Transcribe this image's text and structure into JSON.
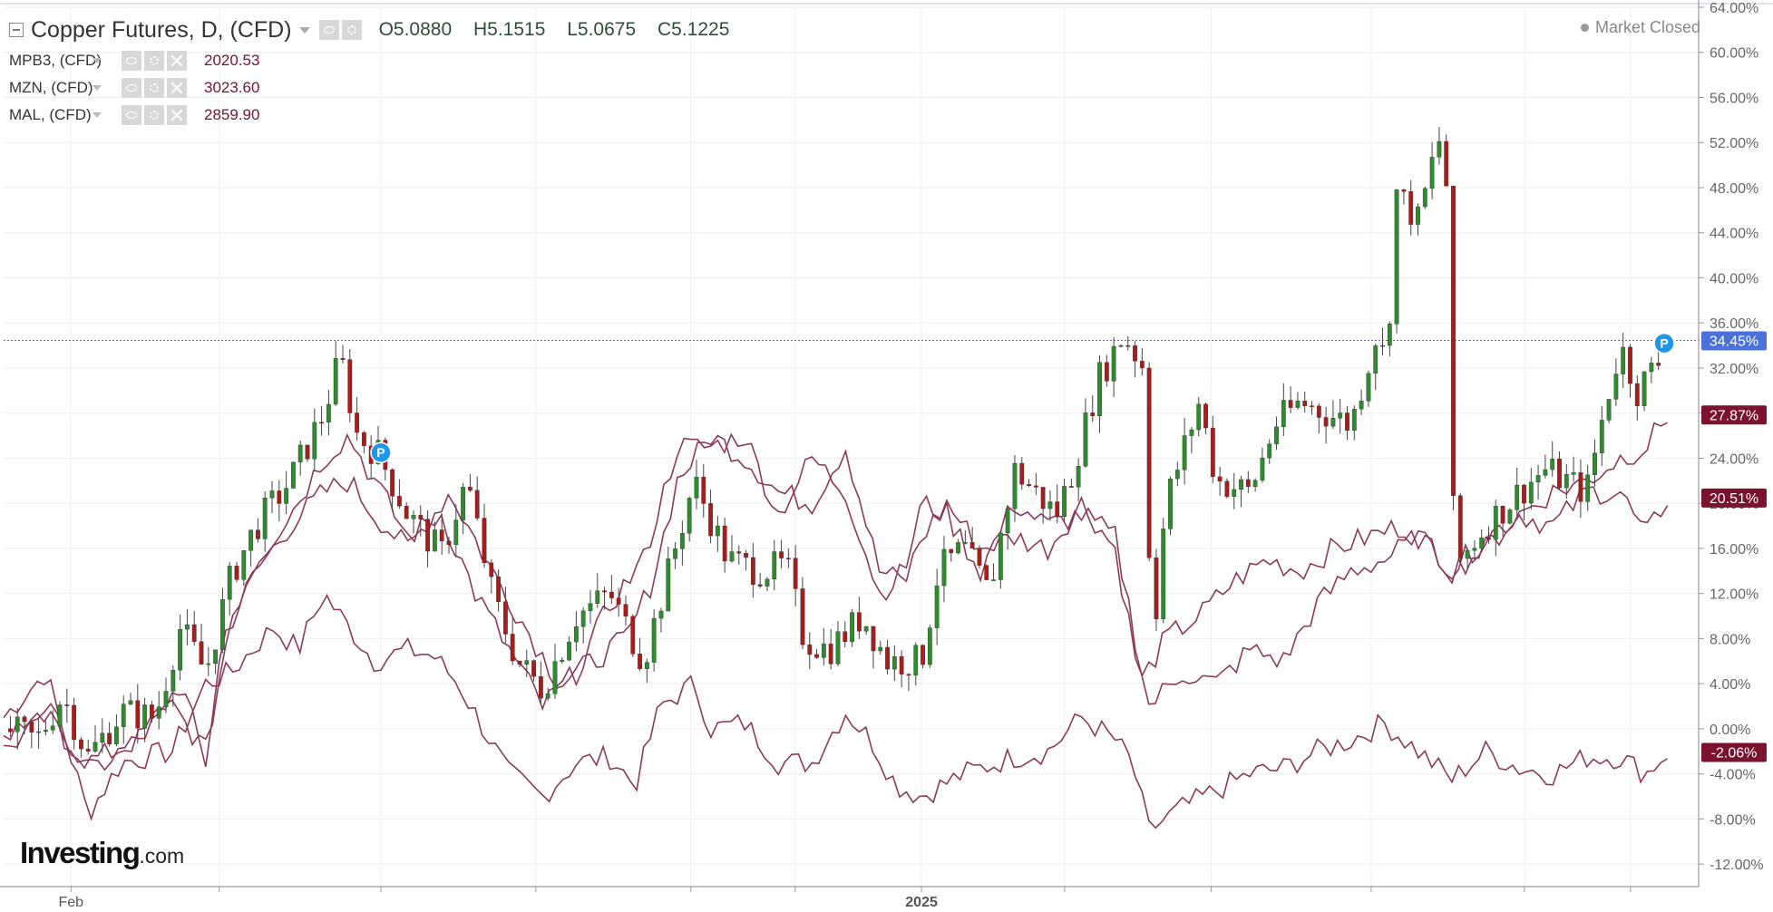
{
  "instrument": {
    "title": "Copper Futures, D, (CFD)",
    "ohlc": {
      "open": "O5.0880",
      "high": "H5.1515",
      "low": "L5.0675",
      "close": "C5.1225"
    }
  },
  "comparisons": [
    {
      "name": "MPB3, (CFD)",
      "value": "2020.53"
    },
    {
      "name": "MZN, (CFD)",
      "value": "3023.60"
    },
    {
      "name": "MAL, (CFD)",
      "value": "2859.90"
    }
  ],
  "market_status": "Market Closed",
  "logo": {
    "main": "Investing",
    "suffix": ".com"
  },
  "colors": {
    "up": "#2e8b2e",
    "down": "#a81c1c",
    "compare": "#8b3a5a",
    "price_line": "#4a72d8",
    "badge_dark": "#7a1230"
  },
  "chart_data": {
    "type": "line",
    "y_unit": "%",
    "ylim": [
      -14,
      64
    ],
    "y_ticks": [
      "64.00%",
      "60.00%",
      "56.00%",
      "52.00%",
      "48.00%",
      "44.00%",
      "40.00%",
      "36.00%",
      "32.00%",
      "28.00%",
      "24.00%",
      "20.00%",
      "16.00%",
      "12.00%",
      "8.00%",
      "4.00%",
      "0.00%",
      "-4.00%",
      "-8.00%",
      "-12.00%"
    ],
    "x_labels": [
      {
        "label": "Feb",
        "t": 0.04
      },
      {
        "label": "2025",
        "t": 0.545
      }
    ],
    "x_ticks": [
      0.04,
      0.128,
      0.224,
      0.316,
      0.408,
      0.47,
      0.545,
      0.63,
      0.717,
      0.812,
      0.903,
      0.966
    ],
    "current_price_line": 34.45,
    "badges": [
      {
        "label": "34.45%",
        "value": 34.45,
        "style": "blue"
      },
      {
        "label": "27.87%",
        "value": 27.87,
        "style": "dark"
      },
      {
        "label": "20.51%",
        "value": 20.51,
        "style": "dark"
      },
      {
        "label": "-2.06%",
        "value": -2.06,
        "style": "dark"
      }
    ],
    "markers": [
      {
        "label": "P",
        "t": 0.224,
        "value": 24.5
      },
      {
        "label": "P",
        "t": 0.986,
        "value": 34.2
      }
    ],
    "candles_path": [
      [
        0.0,
        0.0
      ],
      [
        0.02,
        -1.0
      ],
      [
        0.035,
        3.0
      ],
      [
        0.05,
        -2.5
      ],
      [
        0.07,
        1.5
      ],
      [
        0.09,
        1.0
      ],
      [
        0.105,
        9.0
      ],
      [
        0.12,
        5.0
      ],
      [
        0.135,
        13.5
      ],
      [
        0.15,
        18.0
      ],
      [
        0.17,
        22.0
      ],
      [
        0.19,
        28.0
      ],
      [
        0.2,
        33.0
      ],
      [
        0.21,
        26.0
      ],
      [
        0.222,
        24.5
      ],
      [
        0.24,
        19.0
      ],
      [
        0.26,
        15.5
      ],
      [
        0.275,
        22.0
      ],
      [
        0.29,
        12.0
      ],
      [
        0.305,
        6.0
      ],
      [
        0.32,
        3.5
      ],
      [
        0.34,
        10.0
      ],
      [
        0.36,
        12.0
      ],
      [
        0.38,
        6.0
      ],
      [
        0.395,
        14.0
      ],
      [
        0.41,
        22.0
      ],
      [
        0.43,
        15.0
      ],
      [
        0.45,
        14.0
      ],
      [
        0.465,
        14.5
      ],
      [
        0.475,
        8.0
      ],
      [
        0.49,
        7.0
      ],
      [
        0.51,
        10.0
      ],
      [
        0.525,
        6.0
      ],
      [
        0.545,
        6.0
      ],
      [
        0.555,
        14.0
      ],
      [
        0.57,
        16.0
      ],
      [
        0.585,
        12.0
      ],
      [
        0.6,
        23.0
      ],
      [
        0.625,
        19.0
      ],
      [
        0.635,
        23.0
      ],
      [
        0.65,
        31.0
      ],
      [
        0.665,
        35.0
      ],
      [
        0.677,
        32.0
      ],
      [
        0.682,
        7.0
      ],
      [
        0.69,
        20.0
      ],
      [
        0.71,
        29.0
      ],
      [
        0.72,
        22.0
      ],
      [
        0.74,
        21.0
      ],
      [
        0.755,
        27.0
      ],
      [
        0.77,
        29.0
      ],
      [
        0.8,
        27.0
      ],
      [
        0.815,
        35.0
      ],
      [
        0.822,
        32.0
      ],
      [
        0.825,
        48.0
      ],
      [
        0.84,
        45.0
      ],
      [
        0.852,
        52.5
      ],
      [
        0.858,
        47.0
      ],
      [
        0.86,
        20.0
      ],
      [
        0.865,
        15.0
      ],
      [
        0.88,
        18.0
      ],
      [
        0.9,
        21.0
      ],
      [
        0.915,
        23.0
      ],
      [
        0.94,
        21.0
      ],
      [
        0.95,
        28.0
      ],
      [
        0.96,
        34.0
      ],
      [
        0.97,
        30.0
      ],
      [
        0.985,
        33.0
      ]
    ],
    "series": [
      {
        "name": "MPB3, (CFD)",
        "end_value": -2.06,
        "path": [
          [
            0.0,
            1.0
          ],
          [
            0.025,
            5.0
          ],
          [
            0.05,
            -7.5
          ],
          [
            0.07,
            -3.0
          ],
          [
            0.1,
            -2.0
          ],
          [
            0.12,
            4.0
          ],
          [
            0.135,
            5.0
          ],
          [
            0.16,
            9.0
          ],
          [
            0.175,
            7.0
          ],
          [
            0.19,
            12.0
          ],
          [
            0.205,
            9.0
          ],
          [
            0.22,
            6.0
          ],
          [
            0.24,
            7.0
          ],
          [
            0.255,
            6.5
          ],
          [
            0.27,
            4.0
          ],
          [
            0.3,
            -4.0
          ],
          [
            0.32,
            -6.0
          ],
          [
            0.34,
            -3.0
          ],
          [
            0.36,
            -2.5
          ],
          [
            0.375,
            -5.0
          ],
          [
            0.39,
            2.0
          ],
          [
            0.41,
            4.0
          ],
          [
            0.42,
            0.0
          ],
          [
            0.44,
            0.5
          ],
          [
            0.46,
            -3.0
          ],
          [
            0.48,
            -3.0
          ],
          [
            0.5,
            1.5
          ],
          [
            0.515,
            -1.0
          ],
          [
            0.53,
            -5.0
          ],
          [
            0.545,
            -6.0
          ],
          [
            0.57,
            -4.0
          ],
          [
            0.6,
            -2.5
          ],
          [
            0.62,
            -2.0
          ],
          [
            0.64,
            1.0
          ],
          [
            0.66,
            -1.0
          ],
          [
            0.67,
            -3.0
          ],
          [
            0.68,
            -9.0
          ],
          [
            0.7,
            -7.0
          ],
          [
            0.72,
            -5.5
          ],
          [
            0.74,
            -4.0
          ],
          [
            0.76,
            -3.5
          ],
          [
            0.78,
            -2.0
          ],
          [
            0.8,
            -1.0
          ],
          [
            0.82,
            0.5
          ],
          [
            0.84,
            -2.0
          ],
          [
            0.86,
            -4.5
          ],
          [
            0.88,
            -2.0
          ],
          [
            0.9,
            -3.5
          ],
          [
            0.92,
            -4.0
          ],
          [
            0.94,
            -2.5
          ],
          [
            0.96,
            -2.5
          ],
          [
            0.975,
            -4.0
          ],
          [
            0.988,
            -2.06
          ]
        ]
      },
      {
        "name": "MZN, (CFD)",
        "end_value": 20.51,
        "path": [
          [
            0.0,
            -2.0
          ],
          [
            0.025,
            1.0
          ],
          [
            0.05,
            -3.0
          ],
          [
            0.08,
            -1.0
          ],
          [
            0.105,
            4.0
          ],
          [
            0.12,
            -3.0
          ],
          [
            0.13,
            8.0
          ],
          [
            0.15,
            14.0
          ],
          [
            0.17,
            18.0
          ],
          [
            0.19,
            21.0
          ],
          [
            0.205,
            22.0
          ],
          [
            0.22,
            19.0
          ],
          [
            0.24,
            16.0
          ],
          [
            0.265,
            21.0
          ],
          [
            0.29,
            14.0
          ],
          [
            0.31,
            9.0
          ],
          [
            0.33,
            4.0
          ],
          [
            0.35,
            6.0
          ],
          [
            0.37,
            8.0
          ],
          [
            0.385,
            13.0
          ],
          [
            0.4,
            22.0
          ],
          [
            0.42,
            26.0
          ],
          [
            0.44,
            24.0
          ],
          [
            0.46,
            21.0
          ],
          [
            0.48,
            20.0
          ],
          [
            0.5,
            25.0
          ],
          [
            0.52,
            14.0
          ],
          [
            0.535,
            13.0
          ],
          [
            0.545,
            17.0
          ],
          [
            0.56,
            20.0
          ],
          [
            0.58,
            16.0
          ],
          [
            0.6,
            17.0
          ],
          [
            0.62,
            16.0
          ],
          [
            0.64,
            20.0
          ],
          [
            0.66,
            16.0
          ],
          [
            0.675,
            4.0
          ],
          [
            0.69,
            8.0
          ],
          [
            0.71,
            10.0
          ],
          [
            0.73,
            13.0
          ],
          [
            0.75,
            15.0
          ],
          [
            0.77,
            14.0
          ],
          [
            0.79,
            16.0
          ],
          [
            0.81,
            17.0
          ],
          [
            0.83,
            18.0
          ],
          [
            0.85,
            16.0
          ],
          [
            0.86,
            14.0
          ],
          [
            0.88,
            17.0
          ],
          [
            0.9,
            19.0
          ],
          [
            0.92,
            18.0
          ],
          [
            0.94,
            21.0
          ],
          [
            0.96,
            21.0
          ],
          [
            0.975,
            17.0
          ],
          [
            0.988,
            20.51
          ]
        ]
      },
      {
        "name": "MAL, (CFD)",
        "end_value": 27.87,
        "path": [
          [
            0.0,
            -1.0
          ],
          [
            0.025,
            2.0
          ],
          [
            0.05,
            -4.0
          ],
          [
            0.08,
            -1.0
          ],
          [
            0.1,
            2.0
          ],
          [
            0.12,
            -2.0
          ],
          [
            0.135,
            10.0
          ],
          [
            0.15,
            15.0
          ],
          [
            0.17,
            19.0
          ],
          [
            0.19,
            24.0
          ],
          [
            0.205,
            26.0
          ],
          [
            0.22,
            22.0
          ],
          [
            0.24,
            17.0
          ],
          [
            0.26,
            19.0
          ],
          [
            0.28,
            12.0
          ],
          [
            0.3,
            7.0
          ],
          [
            0.32,
            2.0
          ],
          [
            0.34,
            5.0
          ],
          [
            0.36,
            11.0
          ],
          [
            0.38,
            15.0
          ],
          [
            0.4,
            25.0
          ],
          [
            0.42,
            25.0
          ],
          [
            0.44,
            26.0
          ],
          [
            0.46,
            19.0
          ],
          [
            0.48,
            24.0
          ],
          [
            0.5,
            21.0
          ],
          [
            0.52,
            12.0
          ],
          [
            0.535,
            14.0
          ],
          [
            0.545,
            20.0
          ],
          [
            0.56,
            19.0
          ],
          [
            0.58,
            14.0
          ],
          [
            0.6,
            20.0
          ],
          [
            0.62,
            18.0
          ],
          [
            0.64,
            19.0
          ],
          [
            0.66,
            17.0
          ],
          [
            0.68,
            2.0
          ],
          [
            0.7,
            5.0
          ],
          [
            0.72,
            4.0
          ],
          [
            0.74,
            7.0
          ],
          [
            0.76,
            6.0
          ],
          [
            0.78,
            11.0
          ],
          [
            0.8,
            14.0
          ],
          [
            0.82,
            15.0
          ],
          [
            0.84,
            17.0
          ],
          [
            0.86,
            14.0
          ],
          [
            0.88,
            16.0
          ],
          [
            0.9,
            19.0
          ],
          [
            0.92,
            21.0
          ],
          [
            0.94,
            22.0
          ],
          [
            0.96,
            24.0
          ],
          [
            0.975,
            25.0
          ],
          [
            0.988,
            27.87
          ]
        ]
      }
    ]
  }
}
